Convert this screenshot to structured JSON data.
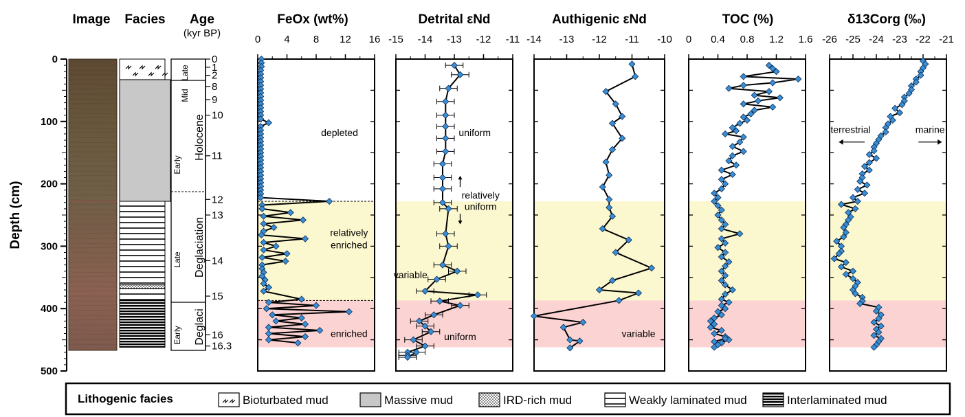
{
  "columns": {
    "image": "Image",
    "facies": "Facies",
    "age": "Age",
    "age_unit": "(kyr BP)",
    "depth_label": "Depth (cm)"
  },
  "depth_ticks": [
    0,
    100,
    200,
    300,
    400,
    500
  ],
  "age_labels": [
    {
      "age": "0",
      "depth": 0
    },
    {
      "age": "1",
      "depth": 13
    },
    {
      "age": "2",
      "depth": 26
    },
    {
      "age": "8",
      "depth": 44
    },
    {
      "age": "9",
      "depth": 65
    },
    {
      "age": "10",
      "depth": 90
    },
    {
      "age": "11",
      "depth": 155
    },
    {
      "age": "12",
      "depth": 225
    },
    {
      "age": "13",
      "depth": 250
    },
    {
      "age": "14",
      "depth": 323
    },
    {
      "age": "15",
      "depth": 380
    },
    {
      "age": "16",
      "depth": 442
    },
    {
      "age": "16.3",
      "depth": 460
    }
  ],
  "stratigraphy": {
    "late": "Late",
    "mid": "Mid",
    "early_holocene": "Early",
    "holocene": "Holocene",
    "late_deglaciation": "Late",
    "deglaciation": "Deglaciation",
    "early_deglaci": "Early",
    "deglaci": "Deglaci"
  },
  "facies_units": [
    {
      "type": "bioturbated",
      "top": 0,
      "bottom": 33
    },
    {
      "type": "massive",
      "top": 33,
      "bottom": 228
    },
    {
      "type": "weakly_laminated",
      "top": 228,
      "bottom": 362
    },
    {
      "type": "ird",
      "top": 362,
      "bottom": 368
    },
    {
      "type": "weakly_laminated",
      "top": 368,
      "bottom": 387
    },
    {
      "type": "interlaminated",
      "top": 387,
      "bottom": 462
    }
  ],
  "zones": {
    "enriched_top": 228,
    "enriched_bottom": 387,
    "pink_bottom": 462,
    "yellow_color": "#fbf7cf",
    "pink_color": "#fcd3d3"
  },
  "colors": {
    "marker": "#3a8fd4",
    "marker_edge": "#0b2a55",
    "line": "#000000"
  },
  "chart_data": [
    {
      "type": "line",
      "title": "FeOx (wt%)",
      "xlim": [
        0,
        16
      ],
      "xticks": [
        0,
        4,
        8,
        12,
        16
      ],
      "annotations": [
        {
          "text": "depleted",
          "x": 11.2,
          "depth": 118
        },
        {
          "text": "relatively",
          "x": 12.5,
          "depth": 278
        },
        {
          "text": "enriched",
          "x": 12.5,
          "depth": 298
        },
        {
          "text": "enriched",
          "x": 12.5,
          "depth": 440
        }
      ],
      "x": [
        0.5,
        0.5,
        0.5,
        0.4,
        0.4,
        0.4,
        0.4,
        0.4,
        0.4,
        0.4,
        0.4,
        0.4,
        0.4,
        0.4,
        0.4,
        0.4,
        0.4,
        1.5,
        0.4,
        0.4,
        0.4,
        0.4,
        0.4,
        0.4,
        0.4,
        0.4,
        0.4,
        0.4,
        0.4,
        0.4,
        0.4,
        0.4,
        0.4,
        0.4,
        0.4,
        0.4,
        0.4,
        0.4,
        9.8,
        0.6,
        0.6,
        4.5,
        0.8,
        6.2,
        0.8,
        2.2,
        0.8,
        0.5,
        6.5,
        0.8,
        2.5,
        0.8,
        4.0,
        0.6,
        3.8,
        0.6,
        0.6,
        0.8,
        0.6,
        1.0,
        0.8,
        1.5,
        0.8,
        6.0,
        1.5,
        8.0,
        1.2,
        12.5,
        2.0,
        6.0,
        2.5,
        6.5,
        1.5,
        8.5,
        1.5,
        6.5,
        1.5,
        5.5
      ],
      "y": [
        0,
        6,
        12,
        18,
        24,
        30,
        36,
        42,
        48,
        54,
        60,
        66,
        72,
        78,
        84,
        90,
        96,
        102,
        108,
        114,
        120,
        126,
        132,
        138,
        144,
        150,
        156,
        162,
        168,
        174,
        180,
        186,
        192,
        198,
        204,
        210,
        216,
        222,
        228,
        234,
        240,
        246,
        252,
        258,
        264,
        270,
        276,
        282,
        288,
        294,
        300,
        306,
        312,
        318,
        324,
        330,
        336,
        342,
        348,
        354,
        360,
        366,
        372,
        385,
        390,
        395,
        400,
        405,
        410,
        415,
        420,
        425,
        430,
        435,
        440,
        445,
        450,
        455
      ]
    },
    {
      "type": "line",
      "title": "Detrital εNd",
      "xlim": [
        -15,
        -11
      ],
      "xticks": [
        -15,
        -14,
        -13,
        -12,
        -11
      ],
      "annotations": [
        {
          "text": "uniform",
          "x": -12.3,
          "depth": 118
        },
        {
          "text": "relatively",
          "x": -12.1,
          "depth": 218
        },
        {
          "text": "uniform",
          "x": -12.1,
          "depth": 236
        },
        {
          "text": "variable",
          "x": -14.5,
          "depth": 346
        },
        {
          "text": "uniform",
          "x": -12.8,
          "depth": 445
        }
      ],
      "x": [
        -13.0,
        -12.8,
        -13.2,
        -13.3,
        -13.3,
        -13.3,
        -13.3,
        -13.3,
        -13.4,
        -13.4,
        -13.4,
        -13.4,
        -13.2,
        -13.3,
        -13.2,
        -13.4,
        -12.9,
        -13.6,
        -14.0,
        -12.2,
        -13.5,
        -12.8,
        -13.7,
        -14.2,
        -14.0,
        -13.8,
        -14.4,
        -14.0,
        -14.6,
        -14.6,
        -14.6,
        -14.3
      ],
      "y": [
        10,
        25,
        47,
        68,
        90,
        108,
        127,
        148,
        168,
        190,
        208,
        230,
        240,
        280,
        300,
        330,
        340,
        353,
        372,
        378,
        388,
        395,
        410,
        420,
        428,
        437,
        450,
        460,
        470,
        475,
        478,
        470
      ],
      "error_bars": 0.3
    },
    {
      "type": "line",
      "title": "Authigenic εNd",
      "xlim": [
        -14,
        -10
      ],
      "xticks": [
        -14,
        -13,
        -12,
        -11,
        -10
      ],
      "annotations": [
        {
          "text": "variable",
          "x": -10.8,
          "depth": 440
        }
      ],
      "x": [
        -11.0,
        -10.9,
        -11.8,
        -11.5,
        -11.3,
        -11.6,
        -11.3,
        -11.6,
        -11.8,
        -11.7,
        -11.9,
        -11.7,
        -11.7,
        -11.6,
        -11.9,
        -11.1,
        -11.5,
        -10.4,
        -11.6,
        -12.0,
        -10.8,
        -11.4,
        -14.0,
        -12.5,
        -13.1,
        -12.9,
        -12.6,
        -12.9
      ],
      "y": [
        8,
        28,
        52,
        72,
        92,
        103,
        127,
        145,
        165,
        186,
        205,
        225,
        238,
        252,
        272,
        290,
        310,
        335,
        355,
        370,
        375,
        387,
        412,
        422,
        430,
        450,
        452,
        463
      ]
    },
    {
      "type": "line",
      "title": "TOC (%)",
      "xlim": [
        0,
        1.6
      ],
      "xticks": [
        0,
        0.4,
        0.8,
        1.2,
        1.6
      ],
      "x": [
        1.1,
        1.15,
        1.2,
        0.75,
        1.5,
        1.15,
        0.75,
        0.55,
        1.1,
        0.9,
        1.25,
        0.95,
        0.75,
        1.15,
        0.9,
        0.85,
        0.75,
        0.8,
        0.7,
        0.6,
        0.65,
        0.5,
        0.75,
        0.7,
        0.6,
        0.75,
        0.6,
        0.55,
        0.65,
        0.45,
        0.6,
        0.45,
        0.5,
        0.45,
        0.35,
        0.4,
        0.35,
        0.4,
        0.45,
        0.4,
        0.45,
        0.5,
        0.45,
        0.7,
        0.45,
        0.5,
        0.4,
        0.5,
        0.45,
        0.55,
        0.5,
        0.45,
        0.5,
        0.45,
        0.5,
        0.6,
        0.5,
        0.45,
        0.55,
        0.45,
        0.5,
        0.4,
        0.45,
        0.35,
        0.3,
        0.35,
        0.3,
        0.45,
        0.35,
        0.5,
        0.55,
        0.45,
        0.5,
        0.35,
        0.4,
        0.35
      ],
      "y": [
        10,
        15,
        20,
        28,
        32,
        38,
        42,
        47,
        52,
        58,
        62,
        67,
        72,
        77,
        82,
        88,
        93,
        98,
        103,
        110,
        115,
        120,
        125,
        133,
        140,
        148,
        155,
        163,
        170,
        178,
        185,
        193,
        200,
        208,
        215,
        222,
        228,
        235,
        242,
        250,
        258,
        265,
        272,
        280,
        288,
        295,
        302,
        310,
        317,
        325,
        332,
        340,
        347,
        355,
        362,
        370,
        377,
        385,
        390,
        395,
        400,
        405,
        410,
        415,
        420,
        425,
        430,
        435,
        440,
        445,
        450,
        455,
        448,
        453,
        458,
        462
      ]
    },
    {
      "type": "line",
      "title": "δ13Corg (‰)",
      "xlim": [
        -26,
        -21
      ],
      "xticks": [
        -26,
        -25,
        -24,
        -23,
        -22,
        -21
      ],
      "annotations": [
        {
          "text": "terrestrial",
          "x": -25.1,
          "depth": 113
        },
        {
          "text": "marine",
          "x": -21.7,
          "depth": 113
        }
      ],
      "x": [
        -22.0,
        -21.9,
        -22.0,
        -22.1,
        -22.1,
        -22.3,
        -22.3,
        -22.5,
        -22.5,
        -22.6,
        -22.8,
        -22.8,
        -22.9,
        -23.2,
        -23.0,
        -23.4,
        -23.3,
        -23.5,
        -23.6,
        -23.6,
        -23.8,
        -23.9,
        -24.0,
        -24.1,
        -24.1,
        -24.3,
        -24.0,
        -24.3,
        -24.5,
        -24.3,
        -24.6,
        -24.6,
        -24.7,
        -24.4,
        -24.8,
        -24.5,
        -25.0,
        -24.8,
        -25.5,
        -24.9,
        -25.2,
        -25.1,
        -25.2,
        -25.3,
        -25.4,
        -25.3,
        -25.4,
        -25.7,
        -25.5,
        -25.5,
        -25.6,
        -25.8,
        -25.3,
        -25.5,
        -25.0,
        -25.3,
        -25.0,
        -24.8,
        -24.9,
        -25.0,
        -24.9,
        -24.6,
        -24.6,
        -24.7,
        -23.9,
        -24.0,
        -23.8,
        -23.9,
        -24.1,
        -23.8,
        -24.0,
        -23.9,
        -24.1,
        -23.8,
        -23.9,
        -24.0,
        -24.1
      ],
      "y": [
        3,
        8,
        14,
        20,
        26,
        32,
        37,
        43,
        49,
        55,
        61,
        67,
        73,
        79,
        86,
        92,
        98,
        104,
        110,
        117,
        123,
        129,
        135,
        141,
        147,
        153,
        159,
        166,
        172,
        178,
        184,
        190,
        196,
        202,
        209,
        215,
        222,
        228,
        233,
        240,
        246,
        253,
        258,
        265,
        270,
        278,
        285,
        292,
        300,
        308,
        312,
        320,
        326,
        333,
        340,
        345,
        352,
        358,
        364,
        370,
        376,
        382,
        388,
        392,
        398,
        404,
        410,
        416,
        422,
        428,
        433,
        438,
        443,
        448,
        453,
        458,
        462
      ]
    }
  ],
  "legend": {
    "title": "Lithogenic facies",
    "items": [
      {
        "key": "bioturbated",
        "label": "Bioturbated mud"
      },
      {
        "key": "massive",
        "label": "Massive mud"
      },
      {
        "key": "ird",
        "label": "IRD-rich mud"
      },
      {
        "key": "weakly_laminated",
        "label": "Weakly laminated mud"
      },
      {
        "key": "interlaminated",
        "label": "Interlaminated mud"
      }
    ]
  }
}
